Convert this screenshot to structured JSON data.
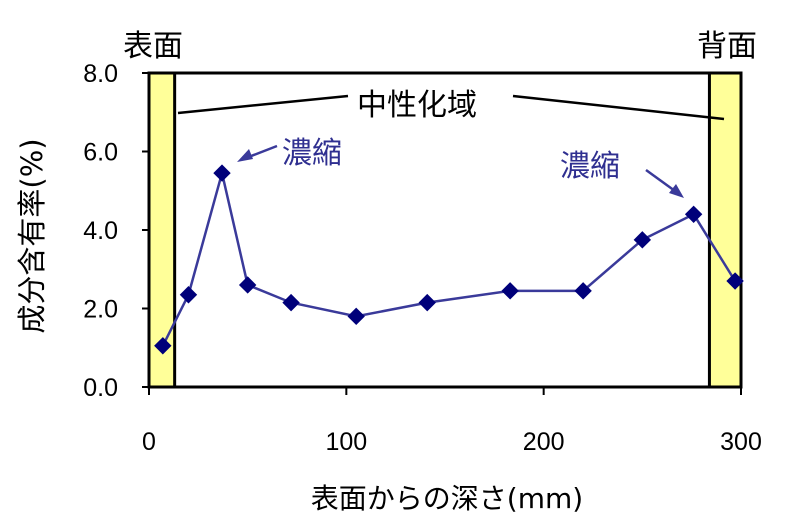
{
  "chart_data": {
    "type": "line",
    "xlabel": "表面からの深さ(mm)",
    "ylabel": "成分含有率(%)",
    "xlim": [
      0,
      300
    ],
    "ylim": [
      0,
      8
    ],
    "x_ticks": [
      "0",
      "100",
      "200",
      "300"
    ],
    "y_ticks": [
      "0.0",
      "2.0",
      "4.0",
      "6.0",
      "8.0"
    ],
    "series": [
      {
        "color": "#00007a",
        "line_color": "#3a3a9a",
        "marker": "diamond",
        "x": [
          7,
          20,
          37,
          50,
          72,
          105,
          141,
          183,
          220,
          250,
          276,
          297
        ],
        "y": [
          1.05,
          2.35,
          5.45,
          2.6,
          2.15,
          1.8,
          2.15,
          2.45,
          2.45,
          3.75,
          4.4,
          2.7
        ]
      }
    ],
    "regions": [
      {
        "label": "表面",
        "x_range": [
          0,
          13
        ],
        "color": "#ffff99"
      },
      {
        "label": "背面",
        "x_range": [
          284,
          300
        ],
        "color": "#ffff99"
      }
    ],
    "annotations": {
      "neutral": "中性化域",
      "concentration_left": "濃縮",
      "concentration_right": "濃縮"
    },
    "grid": false
  }
}
